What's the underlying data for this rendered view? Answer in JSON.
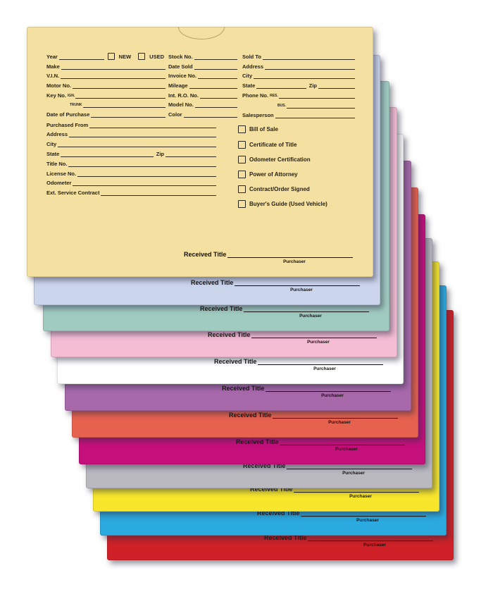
{
  "page": {
    "background": "#ffffff"
  },
  "received_block": {
    "label": "Received Title",
    "sub": "Purchaser"
  },
  "envelopes": [
    {
      "name": "manila",
      "color": "#F4E0A1"
    },
    {
      "name": "blue-gray",
      "color": "#CBD5EC"
    },
    {
      "name": "seafoam",
      "color": "#A0CBC1"
    },
    {
      "name": "pink",
      "color": "#F4BDD4"
    },
    {
      "name": "white",
      "color": "#FFFFFF"
    },
    {
      "name": "purple",
      "color": "#A869AB"
    },
    {
      "name": "coral",
      "color": "#E7614F"
    },
    {
      "name": "magenta",
      "color": "#C5107C"
    },
    {
      "name": "gray",
      "color": "#BBB9C0"
    },
    {
      "name": "yellow",
      "color": "#F7E62C"
    },
    {
      "name": "blue",
      "color": "#2BAADF"
    },
    {
      "name": "red",
      "color": "#CF2127"
    }
  ],
  "form": {
    "new_label": "NEW",
    "used_label": "USED",
    "left": [
      {
        "label": "Year"
      },
      {
        "label": "Make"
      },
      {
        "label": "V.I.N."
      },
      {
        "label": "Motor No."
      },
      {
        "label": "Key No.",
        "sub": "IGN."
      },
      {
        "sub": "TRUNK"
      },
      {
        "label": "Date of Purchase"
      },
      {
        "label": "Purchased From"
      },
      {
        "label": "Address"
      },
      {
        "label": "City"
      },
      {
        "label": "State",
        "label2": "Zip"
      },
      {
        "label": "Title No."
      },
      {
        "label": "License No."
      },
      {
        "label": "Odometer"
      },
      {
        "label": "Ext. Service Contract"
      }
    ],
    "middle": [
      {
        "label": "Stock No."
      },
      {
        "label": "Date Sold"
      },
      {
        "label": "Invoice No."
      },
      {
        "label": "Mileage"
      },
      {
        "label": "Int. R.O. No."
      },
      {
        "label": "Model No."
      },
      {
        "label": "Color"
      }
    ],
    "right": [
      {
        "label": "Sold To"
      },
      {
        "label": "Address"
      },
      {
        "label": "City"
      },
      {
        "label": "State",
        "label2": "Zip"
      },
      {
        "label": "Phone No.",
        "sub": "RES."
      },
      {
        "sub": "BUS."
      },
      {
        "label": "Salesperson"
      }
    ],
    "checkboxes": [
      "Bill of Sale",
      "Certificate of Title",
      "Odometer Certification",
      "Power of Attorney",
      "Contract/Order Signed",
      "Buyer's Guide (Used Vehicle)"
    ]
  }
}
